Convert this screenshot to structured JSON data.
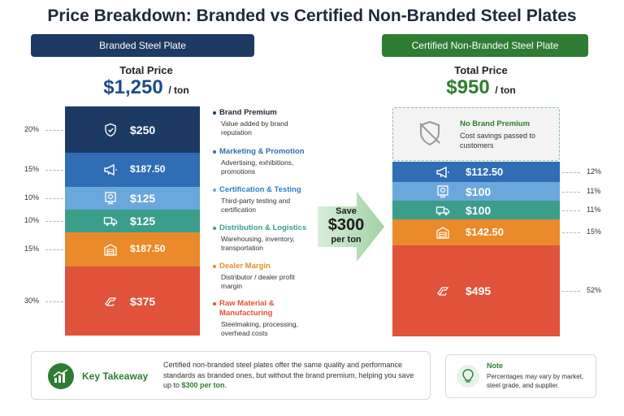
{
  "title": "Price Breakdown: Branded vs Certified Non-Branded Steel Plates",
  "branded": {
    "header": "Branded Steel Plate",
    "total_label": "Total Price",
    "total_value": "$1,250",
    "unit": "/ ton",
    "color": "#1e4b8c"
  },
  "certified": {
    "header": "Certified Non-Branded Steel Plate",
    "total_label": "Total Price",
    "total_value": "$950",
    "unit": "/ ton",
    "color": "#2e7d32",
    "no_brand_title": "No Brand Premium",
    "no_brand_desc": "Cost savings passed to customers"
  },
  "save": {
    "line1": "Save",
    "line2": "$300",
    "line3": "per ton"
  },
  "takeaway": {
    "label": "Key Takeaway",
    "text_before": "Certified non-branded steel plates offer the same quality and performance standards as branded ones, but without the brand premium, helping you save up to ",
    "text_bold": "$300 per ton",
    "text_after": "."
  },
  "note": {
    "label": "Note",
    "text": "Percentages may vary by market, steel grade, and supplier."
  },
  "chart_data": {
    "type": "bar",
    "stacked": true,
    "unit": "$ / ton",
    "categories": [
      "Brand Premium",
      "Marketing & Promotion",
      "Certification & Testing",
      "Distribution & Logistics",
      "Dealer Margin",
      "Raw Material & Manufacturing"
    ],
    "colors": [
      "#1c3a63",
      "#2f6db5",
      "#6aa7db",
      "#3a9e8a",
      "#ea8a2a",
      "#e1523a"
    ],
    "icons": [
      "shield-icon",
      "megaphone-icon",
      "certificate-icon",
      "truck-icon",
      "warehouse-icon",
      "steel-coil-icon"
    ],
    "descriptions": [
      "Value added by brand reputation",
      "Advertising, exhibitions, promotions",
      "Third-party testing and certification",
      "Warehousing, inventory, transportation",
      "Distributor / dealer profit margin",
      "Steelmaking, processing, overhead costs"
    ],
    "series": [
      {
        "name": "Branded Steel Plate",
        "values": [
          250,
          187.5,
          125,
          125,
          187.5,
          375
        ],
        "labels": [
          "$250",
          "$187.50",
          "$125",
          "$125",
          "$187.50",
          "$375"
        ],
        "percents": [
          "20%",
          "15%",
          "10%",
          "10%",
          "15%",
          "30%"
        ]
      },
      {
        "name": "Certified Non-Branded Steel Plate",
        "values": [
          0,
          112.5,
          100,
          100,
          142.5,
          495
        ],
        "labels": [
          "",
          "$112.50",
          "$100",
          "$100",
          "$142.50",
          "$495"
        ],
        "percents": [
          "",
          "12%",
          "11%",
          "11%",
          "15%",
          "52%"
        ]
      }
    ]
  }
}
